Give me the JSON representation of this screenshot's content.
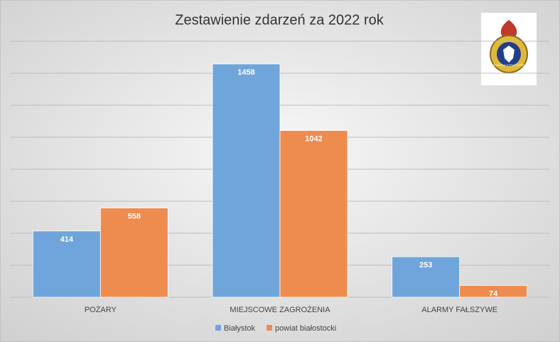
{
  "chart_data": {
    "type": "bar",
    "title": "Zestawienie zdarzeń za 2022 rok",
    "categories": [
      "POŻARY",
      "MIEJSCOWE ZAGROŻENIA",
      "ALARMY FAŁSZYWE"
    ],
    "series": [
      {
        "name": "Białystok",
        "color": "#6fa5da",
        "values": [
          414,
          1458,
          253
        ]
      },
      {
        "name": "powiat białostocki",
        "color": "#ee8c4f",
        "values": [
          558,
          1042,
          74
        ]
      }
    ],
    "ylim": [
      0,
      1600
    ],
    "yticks": [
      0,
      200,
      400,
      600,
      800,
      1000,
      1200,
      1400,
      1600
    ],
    "grid": true,
    "show_ytick_labels": false,
    "legend": "bottom",
    "logo_text": "PAŃSTWOWA STRAŻ POŻARNA"
  }
}
